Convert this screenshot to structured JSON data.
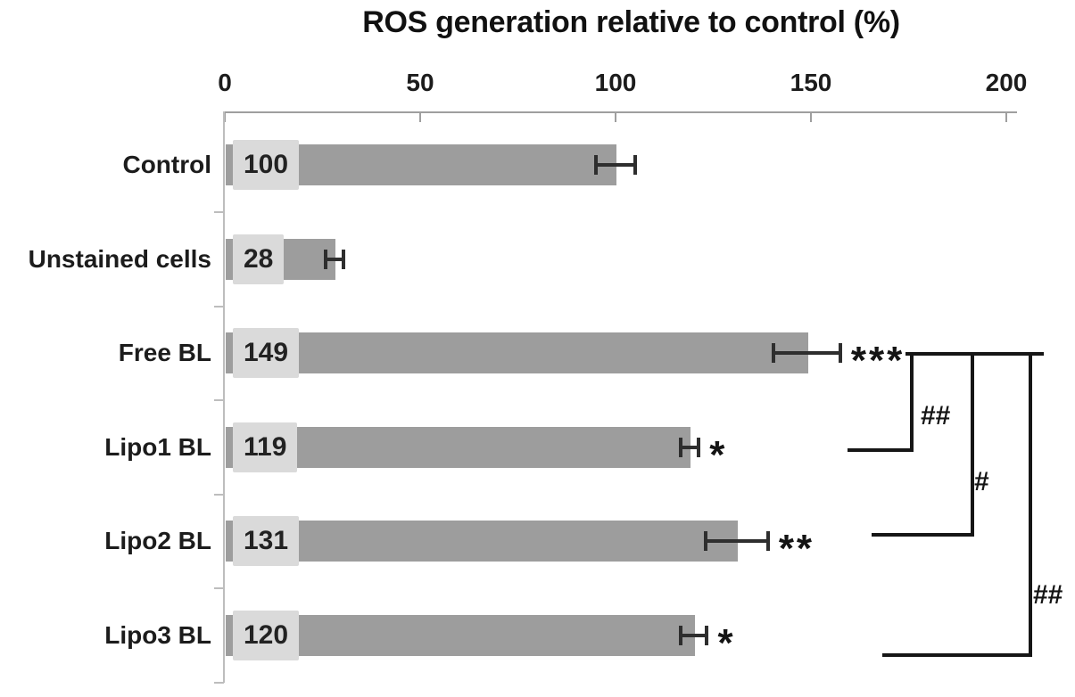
{
  "chart_data": {
    "type": "bar",
    "orientation": "horizontal",
    "title": "ROS generation relative to control (%)",
    "xlabel": "",
    "ylabel": "",
    "xlim": [
      0,
      200
    ],
    "x_ticks": [
      0,
      50,
      100,
      150,
      200
    ],
    "grid": "off",
    "categories": [
      "Control",
      "Unstained cells",
      "Free BL",
      "Lipo1 BL",
      "Lipo2 BL",
      "Lipo3 BL"
    ],
    "values": [
      100,
      28,
      149,
      119,
      131,
      120
    ],
    "value_labels": [
      "100",
      "28",
      "149",
      "119",
      "131",
      "120"
    ],
    "error_bars": [
      5,
      2.3,
      8.5,
      2.3,
      8,
      3.4
    ],
    "significance_markers": [
      "",
      "",
      "***",
      "*",
      "**",
      "*"
    ],
    "comparisons": [
      {
        "from": "Free BL",
        "to": "Lipo1 BL",
        "label": "##"
      },
      {
        "from": "Free BL",
        "to": "Lipo2 BL",
        "label": "#"
      },
      {
        "from": "Free BL",
        "to": "Lipo3 BL",
        "label": "##"
      }
    ],
    "colors": {
      "bar": "#9d9d9d",
      "value_label_box": "#dadada",
      "x_axis": "#9f9f9f",
      "y_axis": "#bdbdbd",
      "error_bar": "#2e2e2e",
      "marker_text": "#141414"
    }
  }
}
